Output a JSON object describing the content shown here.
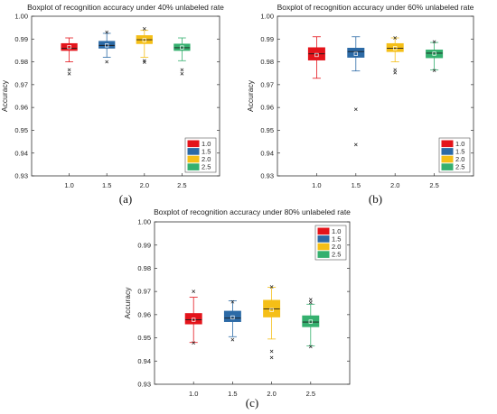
{
  "colors": {
    "1.0": "#e4141b",
    "1.5": "#2c6aa6",
    "2.0": "#f5bf17",
    "2.5": "#35b06f"
  },
  "chart_data": [
    {
      "type": "boxplot",
      "title": "Boxplot of recognition accuracy under 40% unlabeled rate",
      "xlabel": "",
      "ylabel": "Accuracy",
      "caption": "(a)",
      "ylim": [
        0.93,
        1.0
      ],
      "yticks": [
        "0.93",
        "0.94",
        "0.95",
        "0.96",
        "0.97",
        "0.98",
        "0.99",
        "1.00"
      ],
      "categories": [
        "1.0",
        "1.5",
        "2.0",
        "2.5"
      ],
      "legend": {
        "position": "bottom-right",
        "entries": [
          "1.0",
          "1.5",
          "2.0",
          "2.5"
        ]
      },
      "boxes": [
        {
          "name": "1.0",
          "whisker_low": 0.98,
          "q1": 0.985,
          "median": 0.986,
          "q3": 0.988,
          "whisker_high": 0.9905,
          "mean": 0.9865,
          "outliers": [
            0.9765,
            0.9748
          ]
        },
        {
          "name": "1.5",
          "whisker_low": 0.982,
          "q1": 0.986,
          "median": 0.9872,
          "q3": 0.989,
          "whisker_high": 0.9925,
          "mean": 0.9872,
          "outliers": [
            0.98,
            0.993
          ]
        },
        {
          "name": "2.0",
          "whisker_low": 0.982,
          "q1": 0.988,
          "median": 0.9897,
          "q3": 0.9915,
          "whisker_high": 0.9938,
          "mean": 0.9895,
          "outliers": [
            0.9798,
            0.9805,
            0.9945
          ]
        },
        {
          "name": "2.5",
          "whisker_low": 0.9805,
          "q1": 0.985,
          "median": 0.9862,
          "q3": 0.9878,
          "whisker_high": 0.9905,
          "mean": 0.9863,
          "outliers": [
            0.9765,
            0.9748
          ]
        }
      ]
    },
    {
      "type": "boxplot",
      "title": "Boxplot of recognition accuracy under 60% unlabeled rate",
      "xlabel": "",
      "ylabel": "Accuracy",
      "caption": "(b)",
      "ylim": [
        0.93,
        1.0
      ],
      "yticks": [
        "0.93",
        "0.94",
        "0.95",
        "0.96",
        "0.97",
        "0.98",
        "0.99",
        "1.00"
      ],
      "categories": [
        "1.0",
        "1.5",
        "2.0",
        "2.5"
      ],
      "legend": {
        "position": "bottom-right",
        "entries": [
          "1.0",
          "1.5",
          "2.0",
          "2.5"
        ]
      },
      "boxes": [
        {
          "name": "1.0",
          "whisker_low": 0.9728,
          "q1": 0.9808,
          "median": 0.9835,
          "q3": 0.9862,
          "whisker_high": 0.991,
          "mean": 0.983,
          "outliers": []
        },
        {
          "name": "1.5",
          "whisker_low": 0.976,
          "q1": 0.982,
          "median": 0.9845,
          "q3": 0.986,
          "whisker_high": 0.991,
          "mean": 0.9835,
          "outliers": [
            0.9592,
            0.9437
          ]
        },
        {
          "name": "2.0",
          "whisker_low": 0.98,
          "q1": 0.9845,
          "median": 0.986,
          "q3": 0.988,
          "whisker_high": 0.9905,
          "mean": 0.986,
          "outliers": [
            0.9765,
            0.9752,
            0.9905
          ]
        },
        {
          "name": "2.5",
          "whisker_low": 0.9765,
          "q1": 0.9818,
          "median": 0.9838,
          "q3": 0.9852,
          "whisker_high": 0.9885,
          "mean": 0.9836,
          "outliers": [
            0.9762,
            0.9888
          ]
        }
      ]
    },
    {
      "type": "boxplot",
      "title": "Boxplot of recognition accuracy under 80% unlabeled rate",
      "xlabel": "",
      "ylabel": "Accuracy",
      "caption": "(c)",
      "ylim": [
        0.93,
        1.0
      ],
      "yticks": [
        "0.93",
        "0.94",
        "0.95",
        "0.96",
        "0.97",
        "0.98",
        "0.99",
        "1.00"
      ],
      "categories": [
        "1.0",
        "1.5",
        "2.0",
        "2.5"
      ],
      "legend": {
        "position": "top-right",
        "entries": [
          "1.0",
          "1.5",
          "2.0",
          "2.5"
        ]
      },
      "boxes": [
        {
          "name": "1.0",
          "whisker_low": 0.948,
          "q1": 0.956,
          "median": 0.9578,
          "q3": 0.9605,
          "whisker_high": 0.9675,
          "mean": 0.9578,
          "outliers": [
            0.97,
            0.9478
          ]
        },
        {
          "name": "1.5",
          "whisker_low": 0.9505,
          "q1": 0.957,
          "median": 0.9585,
          "q3": 0.9615,
          "whisker_high": 0.966,
          "mean": 0.9588,
          "outliers": [
            0.9655,
            0.9492
          ]
        },
        {
          "name": "2.0",
          "whisker_low": 0.9495,
          "q1": 0.959,
          "median": 0.9625,
          "q3": 0.9662,
          "whisker_high": 0.9718,
          "mean": 0.962,
          "outliers": [
            0.972,
            0.9442,
            0.9415
          ]
        },
        {
          "name": "2.5",
          "whisker_low": 0.9465,
          "q1": 0.9548,
          "median": 0.9568,
          "q3": 0.9595,
          "whisker_high": 0.9645,
          "mean": 0.957,
          "outliers": [
            0.9665,
            0.9652,
            0.9462
          ]
        }
      ]
    }
  ]
}
